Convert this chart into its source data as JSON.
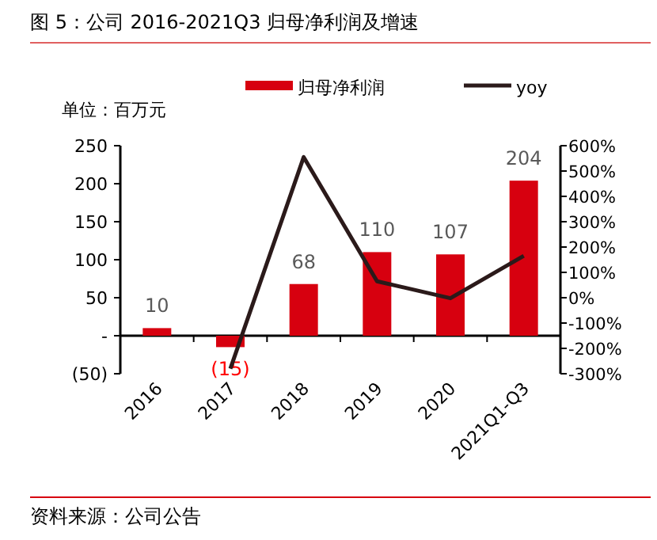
{
  "chart_data": {
    "type": "bar",
    "title": "图 5：公司 2016-2021Q3 归母净利润及增速",
    "ylabel": "单位：百万元",
    "annotations": [
      "资料来源：公司公告"
    ],
    "categories": [
      "2016",
      "2017",
      "2018",
      "2019",
      "2020",
      "2021Q1-Q3"
    ],
    "series": [
      {
        "name": "归母净利润",
        "color": "#d7000f",
        "values": [
          10,
          -15,
          68,
          110,
          107,
          204
        ],
        "value_labels": [
          "10",
          "(15)",
          "68",
          "110",
          "107",
          "204"
        ]
      },
      {
        "name": "yoy",
        "type": "line",
        "axis": "y2",
        "color": "#2b1a1a",
        "values": [
          null,
          -280,
          555,
          65,
          -2,
          165
        ]
      }
    ],
    "ylim": [
      -50,
      250
    ],
    "yticks": [
      {
        "value": -50,
        "label": "(50)"
      },
      {
        "value": 0,
        "label": "-"
      },
      50,
      100,
      150,
      200,
      250
    ],
    "y2lim": [
      -300,
      600
    ],
    "y2ticks": [
      {
        "value": -300,
        "label": "-300%"
      },
      {
        "value": -200,
        "label": "-200%"
      },
      {
        "value": -100,
        "label": "-100%"
      },
      {
        "value": 0,
        "label": "0%"
      },
      {
        "value": 100,
        "label": "100%"
      },
      {
        "value": 200,
        "label": "200%"
      },
      {
        "value": 300,
        "label": "300%"
      },
      {
        "value": 400,
        "label": "400%"
      },
      {
        "value": 500,
        "label": "500%"
      },
      {
        "value": 600,
        "label": "600%"
      }
    ],
    "legend": "top",
    "marker": "none",
    "line_style": "solid"
  }
}
